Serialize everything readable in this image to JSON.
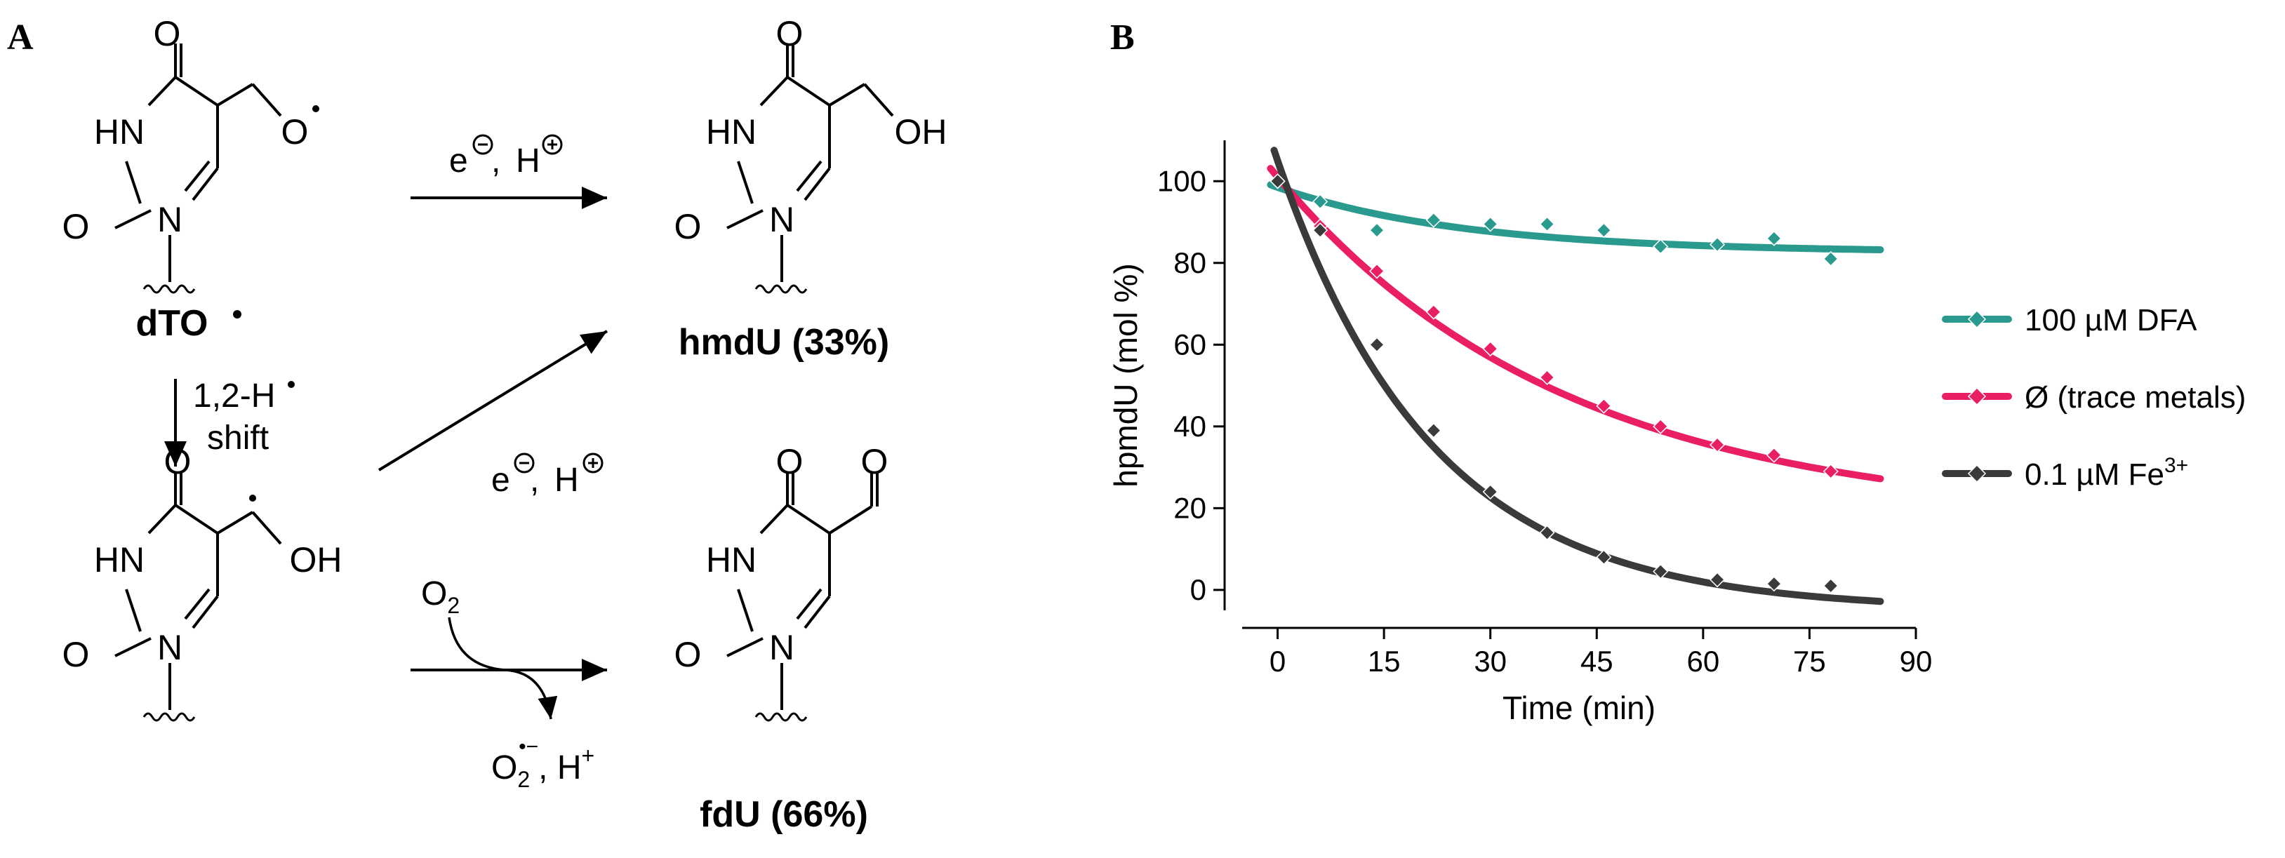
{
  "panels": {
    "a": "A",
    "b": "B"
  },
  "scheme": {
    "atoms": {
      "o": "O",
      "hn": "HN",
      "n": "N",
      "oh": "OH"
    },
    "compounds": {
      "dto": "dTO",
      "hmdu": "hmdU (33%)",
      "fdu": "fdU (66%)"
    },
    "reagents": {
      "electron": "e",
      "proton": "H",
      "shift_line1": "1,2-H",
      "shift_line2": "shift",
      "o2_base": "O",
      "o2_sub": "2",
      "superoxide_sub": "2",
      "superoxide_sup": "•−",
      "h_plus": ", H",
      "plus": "+"
    }
  },
  "chart_data": {
    "type": "scatter",
    "title": "",
    "xlabel": "Time (min)",
    "ylabel": "hpmdU (mol %)",
    "xlim": [
      -5,
      90
    ],
    "ylim": [
      -5,
      110
    ],
    "xticks": [
      0,
      15,
      30,
      45,
      60,
      75,
      90
    ],
    "yticks": [
      0,
      20,
      40,
      60,
      80,
      100
    ],
    "grid": false,
    "legend_position": "right",
    "series": [
      {
        "name": "100 µM DFA",
        "color": "#2a9a8e",
        "x": [
          0,
          6,
          14,
          22,
          30,
          38,
          46,
          54,
          62,
          70,
          78
        ],
        "y": [
          100,
          95,
          88,
          90.5,
          89.5,
          89.5,
          88,
          84,
          84.5,
          86,
          81
        ],
        "fit": {
          "y0": 98.5,
          "plateau": 82.6,
          "k": 0.038,
          "x_start": -1,
          "x_end": 85
        }
      },
      {
        "name": "Ø (trace metals)",
        "color": "#ea1e63",
        "x": [
          0,
          6,
          14,
          22,
          30,
          38,
          46,
          54,
          62,
          70,
          78
        ],
        "y": [
          100,
          89,
          78,
          68,
          59,
          52,
          45,
          40,
          35.5,
          33,
          29
        ],
        "fit": {
          "y0": 101,
          "plateau": 17,
          "k": 0.0248,
          "x_start": -1,
          "x_end": 85
        }
      },
      {
        "name": "0.1 µM Fe",
        "name_sup": "3+",
        "color": "#3a3a3a",
        "x": [
          0,
          6,
          14,
          22,
          30,
          38,
          46,
          54,
          62,
          70,
          78
        ],
        "y": [
          100,
          88,
          60,
          39,
          24,
          14,
          8,
          4.5,
          2.5,
          1.5,
          1
        ],
        "fit": {
          "y0": 105,
          "plateau": -5,
          "k": 0.046,
          "x_start": -0.5,
          "x_end": 85
        }
      }
    ]
  }
}
